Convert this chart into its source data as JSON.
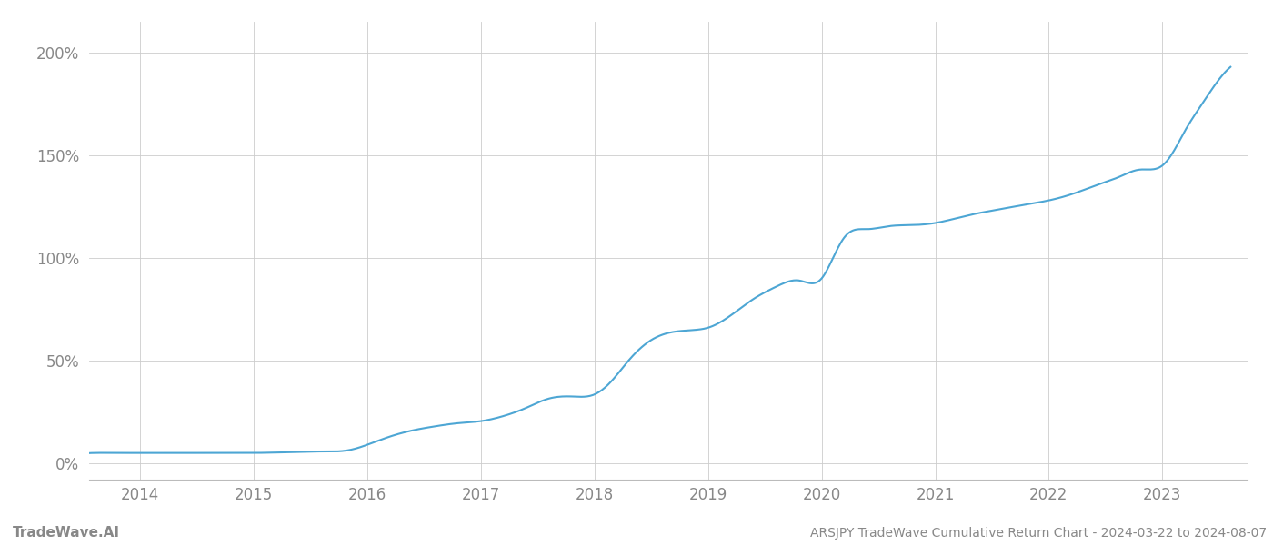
{
  "title": "ARSJPY TradeWave Cumulative Return Chart - 2024-03-22 to 2024-08-07",
  "watermark": "TradeWave.AI",
  "line_color": "#4da6d4",
  "background_color": "#ffffff",
  "grid_color": "#cccccc",
  "text_color": "#888888",
  "x_years": [
    2014,
    2015,
    2016,
    2017,
    2018,
    2019,
    2020,
    2021,
    2022,
    2023
  ],
  "y_ticks": [
    0,
    50,
    100,
    150,
    200
  ],
  "ylim": [
    -8,
    215
  ],
  "xlim": [
    2013.55,
    2023.75
  ],
  "data_x": [
    2013.22,
    2013.4,
    2013.6,
    2013.8,
    2014.0,
    2014.2,
    2014.4,
    2014.6,
    2014.8,
    2015.0,
    2015.2,
    2015.4,
    2015.6,
    2015.75,
    2015.85,
    2016.0,
    2016.2,
    2016.4,
    2016.6,
    2016.8,
    2017.0,
    2017.2,
    2017.4,
    2017.5,
    2017.6,
    2017.8,
    2018.0,
    2018.15,
    2018.3,
    2018.5,
    2018.7,
    2018.9,
    2019.0,
    2019.2,
    2019.4,
    2019.6,
    2019.8,
    2020.0,
    2020.1,
    2020.2,
    2020.4,
    2020.6,
    2020.8,
    2021.0,
    2021.2,
    2021.4,
    2021.5,
    2021.6,
    2021.8,
    2022.0,
    2022.2,
    2022.4,
    2022.5,
    2022.6,
    2022.8,
    2023.0,
    2023.1,
    2023.2,
    2023.35,
    2023.5,
    2023.6
  ],
  "data_y": [
    4.0,
    4.5,
    5.0,
    5.0,
    5.0,
    5.0,
    5.0,
    5.0,
    5.0,
    5.0,
    5.2,
    5.5,
    5.7,
    5.8,
    6.5,
    9.0,
    13.0,
    16.0,
    18.0,
    19.5,
    20.5,
    23.0,
    27.0,
    29.5,
    31.5,
    32.5,
    33.5,
    40.0,
    50.0,
    60.0,
    64.0,
    65.0,
    66.0,
    72.0,
    80.0,
    86.0,
    89.0,
    90.0,
    100.0,
    110.0,
    114.0,
    115.5,
    116.0,
    117.0,
    119.5,
    122.0,
    123.0,
    124.0,
    126.0,
    128.0,
    131.0,
    135.0,
    137.0,
    139.0,
    143.0,
    145.0,
    152.0,
    162.0,
    175.0,
    187.0,
    193.0
  ]
}
